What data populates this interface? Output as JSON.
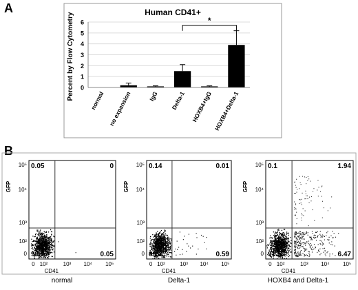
{
  "panel_a_letter": "A",
  "panel_b_letter": "B",
  "chart_data": [
    {
      "type": "bar",
      "title": "Human CD41+",
      "ylabel": "Percent by Flow Cytometry",
      "xlabel": "",
      "categories": [
        "normal",
        "no expansion",
        "IgG",
        "Delta-1",
        "HOXB4+IgG",
        "HOXB4+Delta-1"
      ],
      "values": [
        0,
        0.2,
        0.1,
        1.5,
        0.1,
        3.9
      ],
      "error": [
        0,
        0.2,
        0.05,
        0.6,
        0.05,
        1.3
      ],
      "ylim": [
        0,
        6
      ],
      "yticks": [
        0,
        1,
        2,
        3,
        4,
        5,
        6
      ],
      "bar_color": "#000000",
      "significance": {
        "from": "Delta-1",
        "to": "HOXB4+Delta-1",
        "label": "*"
      }
    },
    {
      "type": "scatter",
      "subtype": "flow-cytometry-quadrant",
      "xlabel": "CD41",
      "ylabel": "GFP",
      "xticks": [
        "0",
        "10²",
        "10³",
        "10⁴",
        "10⁵"
      ],
      "yticks": [
        "0",
        "10²",
        "10³",
        "10⁴",
        "10⁵"
      ],
      "plots": [
        {
          "caption": "normal",
          "quadrants": {
            "upper_left": "0.05",
            "upper_right": "0",
            "lower_left": "99.9",
            "lower_right": "0.05"
          }
        },
        {
          "caption": "Delta-1",
          "quadrants": {
            "upper_left": "0.14",
            "upper_right": "0.01",
            "lower_left": "99.2",
            "lower_right": "0.59"
          }
        },
        {
          "caption": "HOXB4 and Delta-1",
          "quadrants": {
            "upper_left": "0.1",
            "upper_right": "1.94",
            "lower_left": "91.5",
            "lower_right": "6.47"
          }
        }
      ]
    }
  ]
}
